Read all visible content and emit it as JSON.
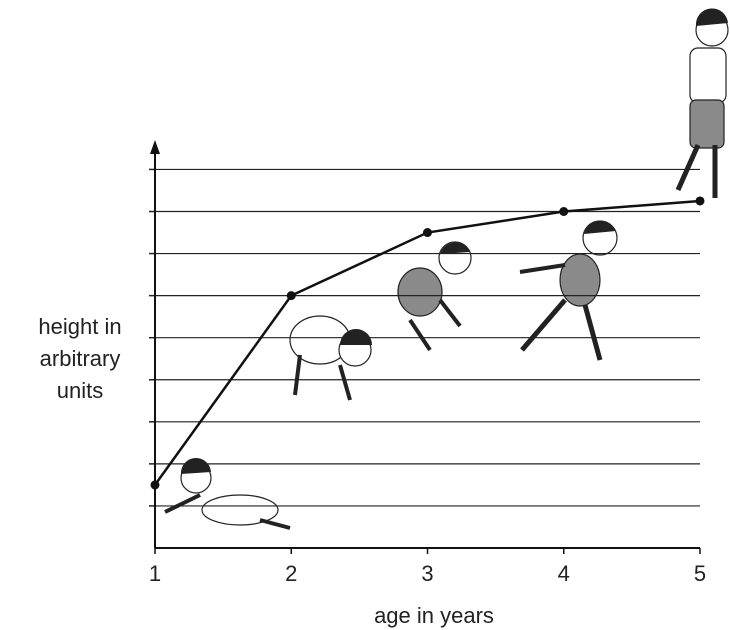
{
  "chart_data": {
    "type": "line",
    "xlabel": "age in years",
    "ylabel": [
      "height in",
      "arbitrary",
      "units"
    ],
    "x": [
      1,
      2,
      3,
      4,
      5
    ],
    "values": [
      1.5,
      6,
      7.5,
      8,
      8.25
    ],
    "color": "#111111",
    "xlim": [
      1,
      5
    ],
    "xticks": [
      1,
      2,
      3,
      4,
      5
    ],
    "ylim": [
      0,
      9.7
    ],
    "yticks": [
      1,
      2,
      3,
      4,
      5,
      6,
      7,
      8,
      9
    ],
    "grid": true
  }
}
